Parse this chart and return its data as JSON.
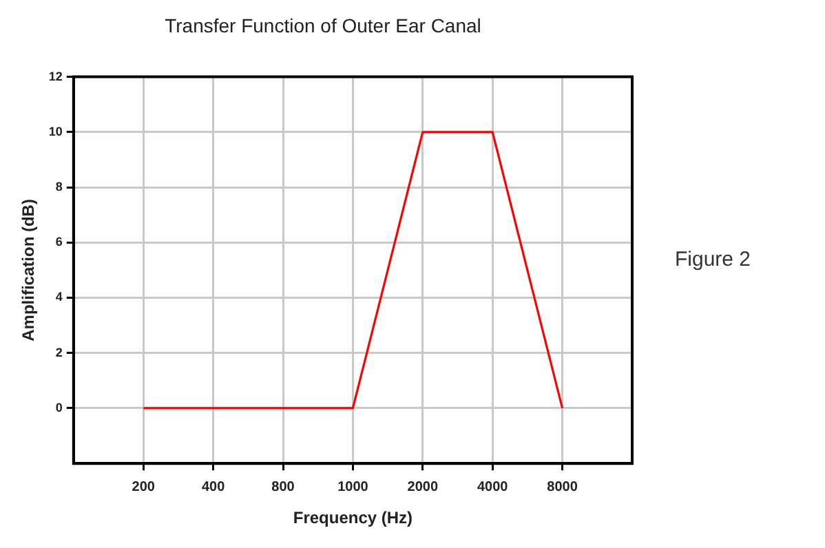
{
  "chart_data": {
    "type": "line",
    "title": "Transfer Function of Outer Ear Canal",
    "xlabel": "Frequency (Hz)",
    "ylabel": "Amplification (dB)",
    "categories": [
      "200",
      "400",
      "800",
      "1000",
      "2000",
      "4000",
      "8000"
    ],
    "series": [
      {
        "color": "#ff0000",
        "values": [
          0,
          0,
          0,
          0,
          10,
          10,
          0
        ]
      }
    ],
    "ylim": [
      -2,
      12
    ],
    "yticks": [
      0,
      2,
      4,
      6,
      8,
      10,
      12
    ],
    "grid": true,
    "legend": false,
    "marker": "none",
    "line_style": "solid",
    "annotations": [
      "Figure 2"
    ]
  }
}
